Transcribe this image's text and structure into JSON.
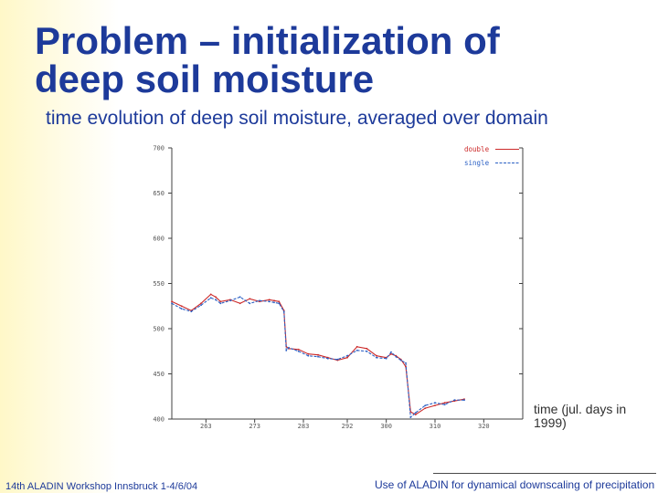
{
  "slide": {
    "title_line1": "Problem – initialization of",
    "title_line2": "deep soil moisture",
    "subtitle": "time evolution of deep soil moisture, averaged over domain",
    "xlabel_caption": "time (jul. days in 1999)",
    "footer_left": "14th ALADIN Workshop  Innsbruck 1-4/6/04",
    "footer_right": "Use of ALADIN for dynamical downscaling of  precipitation"
  },
  "colors": {
    "title": "#1d3a9a",
    "double": "#cc2a2a",
    "single": "#2a5fc4",
    "axis": "#404040"
  },
  "chart_data": {
    "type": "line",
    "title": "",
    "xlabel": "time (jul. days in 1999)",
    "ylabel": "",
    "xlim": [
      256,
      328
    ],
    "ylim": [
      400,
      700
    ],
    "xticks": [
      263,
      273,
      283,
      292,
      300,
      310,
      320
    ],
    "xtick_labels": [
      "263",
      "273",
      "283",
      "292",
      "300",
      "310",
      "320"
    ],
    "yticks": [
      400,
      450,
      500,
      550,
      600,
      650,
      700
    ],
    "ytick_labels": [
      "400",
      "450",
      "500",
      "550",
      "600",
      "650",
      "700"
    ],
    "legend": [
      "double",
      "single"
    ],
    "legend_position": "top-right",
    "series": [
      {
        "name": "double",
        "color": "#cc2a2a",
        "x": [
          256,
          258,
          260,
          262,
          264,
          265,
          266,
          268,
          270,
          272,
          274,
          276,
          277,
          278,
          279,
          279.5,
          280,
          282,
          284,
          286,
          288,
          290,
          292,
          294,
          296,
          298,
          300,
          301,
          302,
          303,
          304,
          305,
          306,
          308,
          310,
          312,
          314,
          316
        ],
        "y": [
          530,
          525,
          520,
          528,
          538,
          535,
          530,
          532,
          528,
          533,
          530,
          532,
          531,
          530,
          520,
          480,
          478,
          477,
          472,
          471,
          468,
          465,
          468,
          480,
          478,
          470,
          468,
          472,
          470,
          466,
          458,
          408,
          405,
          412,
          415,
          418,
          420,
          422
        ]
      },
      {
        "name": "single",
        "color": "#2a5fc4",
        "x": [
          256,
          258,
          260,
          262,
          264,
          265,
          266,
          268,
          270,
          272,
          274,
          276,
          277,
          278,
          279,
          279.5,
          280,
          282,
          284,
          286,
          288,
          290,
          292,
          294,
          296,
          298,
          300,
          301,
          302,
          303,
          304,
          305,
          306,
          308,
          310,
          312,
          314,
          316
        ],
        "y": [
          528,
          522,
          519,
          526,
          534,
          532,
          528,
          531,
          535,
          528,
          531,
          530,
          529,
          528,
          519,
          476,
          479,
          475,
          470,
          469,
          467,
          466,
          470,
          476,
          475,
          468,
          467,
          474,
          469,
          465,
          462,
          402,
          407,
          415,
          418,
          416,
          421,
          421
        ]
      }
    ]
  }
}
